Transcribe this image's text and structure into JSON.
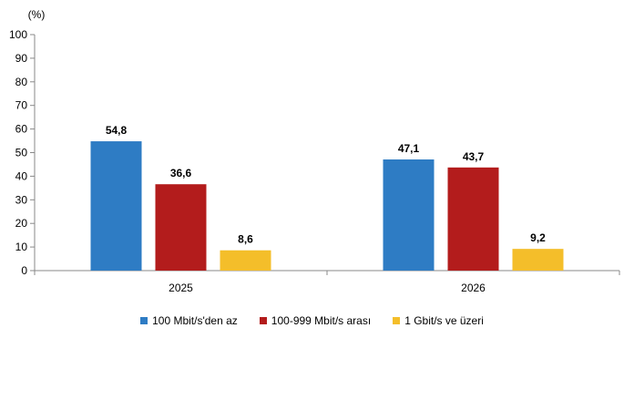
{
  "chart_data": {
    "type": "bar",
    "unit_label": "(%)",
    "categories": [
      "2025",
      "2026"
    ],
    "series": [
      {
        "name": "100 Mbit/s'den az",
        "color": "#2e7cc4",
        "values": [
          54.8,
          47.1
        ],
        "labels": [
          "54,8",
          "47,1"
        ]
      },
      {
        "name": "100-999 Mbit/s arası",
        "color": "#b31c1c",
        "values": [
          36.6,
          43.7
        ],
        "labels": [
          "36,6",
          "43,7"
        ]
      },
      {
        "name": "1 Gbit/s ve üzeri",
        "color": "#f4be2a",
        "values": [
          8.6,
          9.2
        ],
        "labels": [
          "8,6",
          "9,2"
        ]
      }
    ],
    "ylim": [
      0,
      100
    ],
    "yticks": [
      "0",
      "10",
      "20",
      "30",
      "40",
      "50",
      "60",
      "70",
      "80",
      "90",
      "100"
    ],
    "grid": false,
    "legend_position": "bottom"
  }
}
